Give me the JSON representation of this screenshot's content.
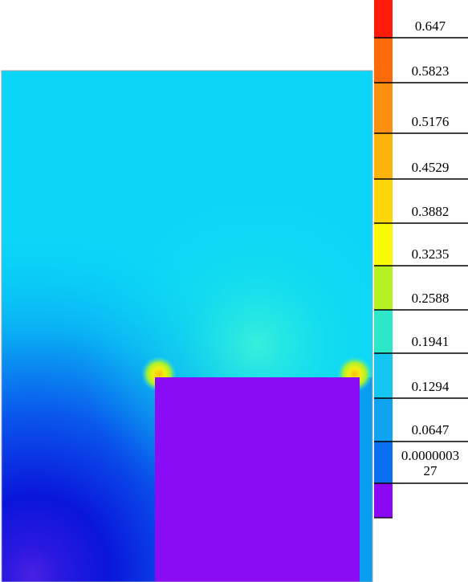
{
  "colorbar": {
    "labels": [
      "0.647",
      "0.5823",
      "0.5176",
      "0.4529",
      "0.3882",
      "0.3235",
      "0.2588",
      "0.1941",
      "0.1294",
      "0.0647",
      "0.0000003\n27"
    ],
    "colors": [
      "#ff1a0a",
      "#fd6a0a",
      "#fd9010",
      "#fdb40a",
      "#fdd60a",
      "#f8fa08",
      "#b6f222",
      "#2ce8c8",
      "#14c6f0",
      "#10a4f0",
      "#0b70f0",
      "#8a08f4"
    ]
  },
  "field": {
    "background_color": "#0bd6f8",
    "low_region_color": "#0a12d6",
    "hotspot_color": "#f8e010",
    "block_color": "#8a0cf4"
  }
}
